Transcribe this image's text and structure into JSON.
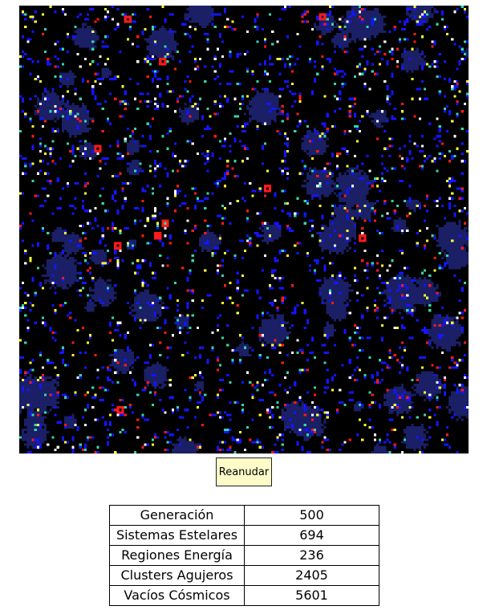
{
  "simulation": {
    "grid_cols": 180,
    "grid_rows": 180,
    "palette": {
      "void": "#000000",
      "nebula": "#1a1f66",
      "star": "#1414ff",
      "energy_red": "#ff1a1a",
      "energy_yellow": "#ffff33",
      "cluster_cyan": "#33d6a8",
      "white": "#ffffff"
    }
  },
  "controls": {
    "resume_label": "Reanudar"
  },
  "stats": [
    {
      "label": "Generación",
      "value": "500"
    },
    {
      "label": "Sistemas Estelares",
      "value": "694"
    },
    {
      "label": "Regiones Energía",
      "value": "236"
    },
    {
      "label": "Clusters Agujeros",
      "value": "2405"
    },
    {
      "label": "Vacíos Cósmicos",
      "value": "5601"
    }
  ]
}
